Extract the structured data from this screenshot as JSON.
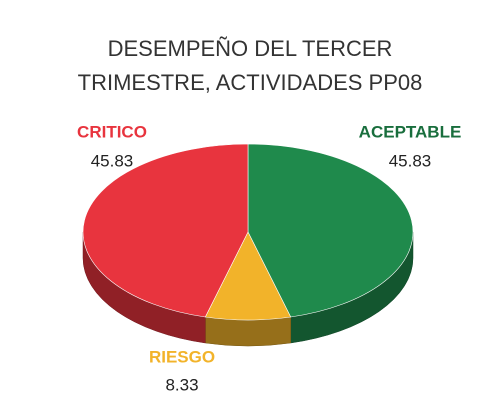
{
  "chart_data": {
    "type": "pie3d",
    "title": [
      "DESEMPEÑO DEL TERCER",
      "TRIMESTRE, ACTIVIDADES PP08"
    ],
    "categories": [
      "ACEPTABLE",
      "RIESGO",
      "CRITICO"
    ],
    "values": [
      45.83,
      8.33,
      45.83
    ],
    "colors": [
      "#1f8a4c",
      "#f2b32a",
      "#e8343e"
    ]
  }
}
